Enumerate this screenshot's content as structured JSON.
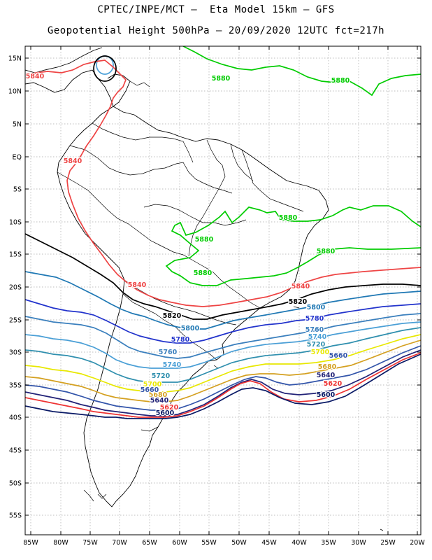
{
  "header": {
    "line1": "CPTEC/INPE/MCT –  Eta Model 15km – GFS",
    "line2": "Geopotential Height 500hPa – 20/09/2020 12UTC fct=217h"
  },
  "axes": {
    "lat_labels": [
      "15N",
      "10N",
      "5N",
      "EQ",
      "5S",
      "10S",
      "15S",
      "20S",
      "25S",
      "30S",
      "35S",
      "40S",
      "45S",
      "50S",
      "55S"
    ],
    "lon_labels": [
      "85W",
      "80W",
      "75W",
      "70W",
      "65W",
      "60W",
      "55W",
      "50W",
      "45W",
      "40W",
      "35W",
      "30W",
      "25W",
      "20W"
    ]
  },
  "contours": [
    {
      "name": "5880-north",
      "level": "5880",
      "color": "#00cc00"
    },
    {
      "name": "5880-atlantic",
      "level": "5880",
      "color": "#00cc00"
    },
    {
      "name": "5880-interior",
      "level": "5880",
      "color": "#00cc00"
    },
    {
      "name": "5840-north",
      "level": "5840",
      "color": "#ee4444"
    },
    {
      "name": "5840-trough",
      "level": "5840",
      "color": "#ee4444"
    },
    {
      "name": "5820",
      "level": "5820",
      "color": "#000000"
    },
    {
      "name": "5800",
      "level": "5800",
      "color": "#1f78b4"
    },
    {
      "name": "5780",
      "level": "5780",
      "color": "#2233cc"
    },
    {
      "name": "5760",
      "level": "5760",
      "color": "#3a7fbd"
    },
    {
      "name": "5740",
      "level": "5740",
      "color": "#4a9fd6"
    },
    {
      "name": "5720",
      "level": "5720",
      "color": "#2f8fae"
    },
    {
      "name": "5700",
      "level": "5700",
      "color": "#e8e800"
    },
    {
      "name": "5680",
      "level": "5680",
      "color": "#d4a020"
    },
    {
      "name": "5660",
      "level": "5660",
      "color": "#3355aa"
    },
    {
      "name": "5640",
      "level": "5640",
      "color": "#222277"
    },
    {
      "name": "5620",
      "level": "5620",
      "color": "#ee3333"
    },
    {
      "name": "5600",
      "level": "5600",
      "color": "#0a1a66"
    }
  ],
  "contour_labels": [
    {
      "level": "5840",
      "color": "#ee4444"
    },
    {
      "level": "5880",
      "color": "#00cc00"
    },
    {
      "level": "5880",
      "color": "#00cc00"
    },
    {
      "level": "5840",
      "color": "#ee4444"
    },
    {
      "level": "5880",
      "color": "#00cc00"
    },
    {
      "level": "5880",
      "color": "#00cc00"
    },
    {
      "level": "5880",
      "color": "#00cc00"
    },
    {
      "level": "5880",
      "color": "#00cc00"
    },
    {
      "level": "5840",
      "color": "#ee4444"
    },
    {
      "level": "5840",
      "color": "#ee4444"
    },
    {
      "level": "5820",
      "color": "#000000"
    },
    {
      "level": "5820",
      "color": "#000000"
    },
    {
      "level": "5800",
      "color": "#1f78b4"
    },
    {
      "level": "5800",
      "color": "#1f78b4"
    },
    {
      "level": "5780",
      "color": "#2233cc"
    },
    {
      "level": "5780",
      "color": "#2233cc"
    },
    {
      "level": "5760",
      "color": "#3a7fbd"
    },
    {
      "level": "5760",
      "color": "#3a7fbd"
    },
    {
      "level": "5740",
      "color": "#4a9fd6"
    },
    {
      "level": "5740",
      "color": "#4a9fd6"
    },
    {
      "level": "5720",
      "color": "#2f8fae"
    },
    {
      "level": "5720",
      "color": "#2f8fae"
    },
    {
      "level": "5700",
      "color": "#e8e800"
    },
    {
      "level": "5700",
      "color": "#e8e800"
    },
    {
      "level": "5680",
      "color": "#d4a020"
    },
    {
      "level": "5680",
      "color": "#d4a020"
    },
    {
      "level": "5660",
      "color": "#3355aa"
    },
    {
      "level": "5660",
      "color": "#3355aa"
    },
    {
      "level": "5640",
      "color": "#222277"
    },
    {
      "level": "5640",
      "color": "#222277"
    },
    {
      "level": "5620",
      "color": "#ee3333"
    },
    {
      "level": "5620",
      "color": "#ee3333"
    },
    {
      "level": "5600",
      "color": "#0a1a66"
    },
    {
      "level": "5600",
      "color": "#0a1a66"
    }
  ]
}
